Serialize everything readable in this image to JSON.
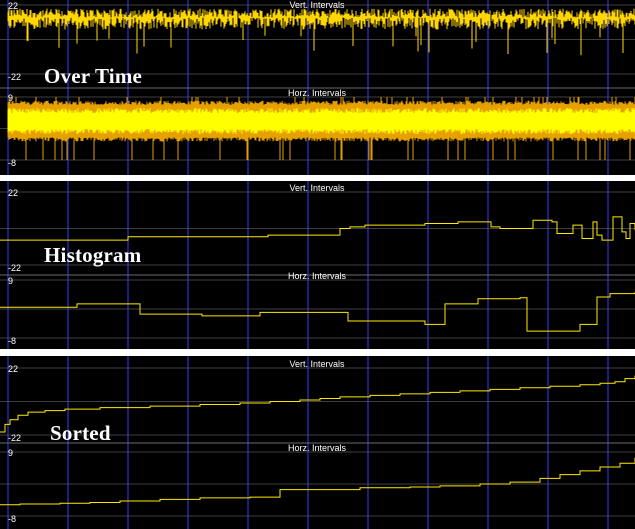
{
  "chart_data": [
    {
      "type": "line",
      "style": "dense-signal",
      "overlay_label": "Over Time",
      "subplots": [
        {
          "title": "Vert. Intervals",
          "y_ticks": [
            "22",
            "-22"
          ],
          "ylim": [
            -22,
            22
          ],
          "series": [
            {
              "color": "#ffd700",
              "mean": 14,
              "amplitude": 8,
              "spike_depth": 18,
              "baseline_color": "#ffd700"
            }
          ]
        },
        {
          "title": "Horz. Intervals",
          "y_ticks": [
            "9",
            "-8"
          ],
          "ylim": [
            -8,
            9
          ],
          "series": [
            {
              "color": "#e6a100",
              "band": [
                -3,
                8
              ]
            },
            {
              "color": "#ffff00",
              "band": [
                -1,
                6
              ]
            }
          ]
        }
      ]
    },
    {
      "type": "line",
      "style": "step",
      "overlay_label": "Histogram",
      "subplots": [
        {
          "title": "Vert. Intervals",
          "y_ticks": [
            "22",
            "-22"
          ],
          "ylim": [
            -22,
            22
          ],
          "x": [
            0,
            128,
            268,
            340,
            350,
            365,
            425,
            458,
            491,
            500,
            533,
            552,
            557,
            573,
            582,
            593,
            597,
            602,
            613,
            622,
            626,
            630,
            635
          ],
          "y": [
            -7,
            -5,
            -4,
            0,
            1,
            2,
            3,
            4,
            1,
            0,
            5,
            4,
            -3,
            2,
            -6,
            4,
            -4,
            -7,
            7,
            -2,
            -6,
            3,
            -1
          ]
        },
        {
          "title": "Horz. Intervals",
          "y_ticks": [
            "9",
            "-8"
          ],
          "ylim": [
            -8,
            9
          ],
          "x": [
            0,
            77,
            140,
            202,
            260,
            348,
            425,
            445,
            478,
            520,
            527,
            580,
            597,
            610,
            635
          ],
          "y": [
            1,
            2,
            -1,
            -1.5,
            -0.5,
            -3,
            -4,
            2,
            3.5,
            3.8,
            -6,
            -4,
            4,
            5,
            5.5
          ]
        }
      ]
    },
    {
      "type": "line",
      "style": "step",
      "overlay_label": "Sorted",
      "subplots": [
        {
          "title": "Vert. Intervals",
          "y_ticks": [
            "22",
            "-22"
          ],
          "ylim": [
            -22,
            22
          ],
          "x": [
            0,
            5,
            10,
            18,
            28,
            45,
            65,
            100,
            150,
            200,
            240,
            270,
            300,
            320,
            340,
            370,
            400,
            430,
            460,
            490,
            520,
            550,
            580,
            600,
            615,
            625,
            635
          ],
          "y": [
            -20,
            -15,
            -12,
            -9,
            -7,
            -6,
            -5,
            -4,
            -3,
            -2,
            -1,
            0,
            1,
            2,
            3,
            4,
            5,
            6,
            7,
            8,
            9,
            10,
            11,
            12,
            13,
            15,
            17
          ]
        },
        {
          "title": "Horz. Intervals",
          "y_ticks": [
            "9",
            "-8"
          ],
          "ylim": [
            -8,
            9
          ],
          "x": [
            0,
            20,
            60,
            90,
            120,
            160,
            200,
            250,
            280,
            360,
            410,
            440,
            480,
            510,
            540,
            560,
            580,
            600,
            620,
            635
          ],
          "y": [
            -5,
            -4.8,
            -4.6,
            -4.4,
            -4,
            -3.6,
            -3.2,
            -3,
            -1,
            -0.5,
            -0.3,
            0,
            0.5,
            1,
            2,
            3,
            4,
            5,
            6,
            7.5
          ]
        }
      ]
    }
  ]
}
